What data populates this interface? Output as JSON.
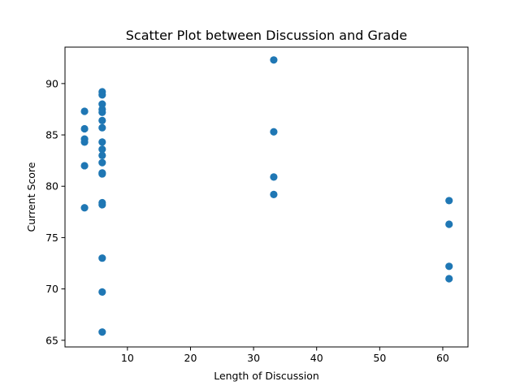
{
  "chart_data": {
    "type": "scatter",
    "title": "Scatter Plot between Discussion and Grade",
    "xlabel": "Length of Discussion",
    "ylabel": "Current Score",
    "xlim": [
      0.1,
      64.0
    ],
    "ylim": [
      64.35,
      93.55
    ],
    "xticks": [
      10,
      20,
      30,
      40,
      50,
      60
    ],
    "yticks": [
      65,
      70,
      75,
      80,
      85,
      90
    ],
    "grid": false,
    "color": "#1f77b4",
    "points": [
      {
        "x": 3.2,
        "y": 87.3
      },
      {
        "x": 3.2,
        "y": 85.6
      },
      {
        "x": 3.2,
        "y": 84.6
      },
      {
        "x": 3.2,
        "y": 84.3
      },
      {
        "x": 3.2,
        "y": 82.0
      },
      {
        "x": 3.2,
        "y": 77.9
      },
      {
        "x": 6.0,
        "y": 89.2
      },
      {
        "x": 6.0,
        "y": 88.9
      },
      {
        "x": 6.0,
        "y": 88.0
      },
      {
        "x": 6.0,
        "y": 87.5
      },
      {
        "x": 6.0,
        "y": 87.2
      },
      {
        "x": 6.0,
        "y": 86.4
      },
      {
        "x": 6.0,
        "y": 85.7
      },
      {
        "x": 6.0,
        "y": 84.3
      },
      {
        "x": 6.0,
        "y": 83.6
      },
      {
        "x": 6.0,
        "y": 83.0
      },
      {
        "x": 6.0,
        "y": 82.3
      },
      {
        "x": 6.0,
        "y": 81.3
      },
      {
        "x": 6.0,
        "y": 81.2
      },
      {
        "x": 6.0,
        "y": 78.4
      },
      {
        "x": 6.0,
        "y": 78.2
      },
      {
        "x": 6.0,
        "y": 73.0
      },
      {
        "x": 6.0,
        "y": 69.7
      },
      {
        "x": 6.0,
        "y": 65.8
      },
      {
        "x": 33.2,
        "y": 92.3
      },
      {
        "x": 33.2,
        "y": 85.3
      },
      {
        "x": 33.2,
        "y": 80.9
      },
      {
        "x": 33.2,
        "y": 79.2
      },
      {
        "x": 61.0,
        "y": 78.6
      },
      {
        "x": 61.0,
        "y": 76.3
      },
      {
        "x": 61.0,
        "y": 72.2
      },
      {
        "x": 61.0,
        "y": 71.0
      }
    ]
  }
}
